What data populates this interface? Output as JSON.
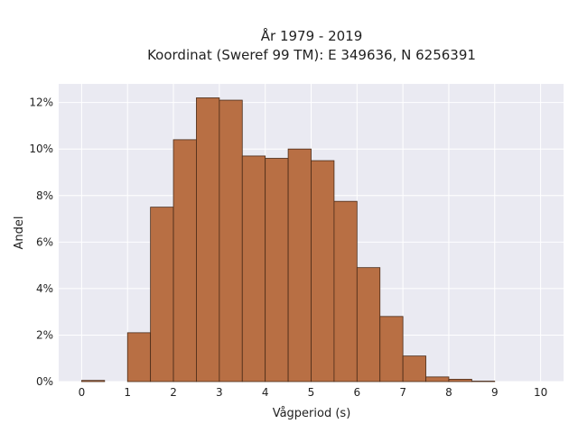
{
  "chart_data": {
    "type": "bar",
    "title": "År 1979 - 2019",
    "subtitle": "Koordinat (Sweref 99 TM): E 349636, N 6256391",
    "xlabel": "Vågperiod (s)",
    "ylabel": "Andel",
    "bin_width": 0.5,
    "bins_start": [
      0,
      0.5,
      1,
      1.5,
      2,
      2.5,
      3,
      3.5,
      4,
      4.5,
      5,
      5.5,
      6,
      6.5,
      7,
      7.5,
      8,
      8.5,
      9,
      9.5
    ],
    "values": [
      0.05,
      0,
      2.1,
      7.5,
      10.4,
      12.2,
      12.1,
      9.7,
      9.6,
      10.0,
      9.5,
      7.75,
      4.9,
      2.8,
      1.1,
      0.2,
      0.1,
      0.02,
      0,
      0
    ],
    "xlim": [
      -0.5,
      10.5
    ],
    "ylim": [
      0,
      12.8
    ],
    "xticks": [
      0,
      1,
      2,
      3,
      4,
      5,
      6,
      7,
      8,
      9,
      10
    ],
    "xtick_labels": [
      "0",
      "1",
      "2",
      "3",
      "4",
      "5",
      "6",
      "7",
      "8",
      "9",
      "10"
    ],
    "yticks": [
      0,
      2,
      4,
      6,
      8,
      10,
      12
    ],
    "ytick_labels": [
      "0%",
      "2%",
      "4%",
      "6%",
      "8%",
      "10%",
      "12%"
    ],
    "grid": true,
    "colors": {
      "bar_fill": "#b86f44",
      "bar_stroke": "#4a2b18",
      "plot_background": "#eaeaf2",
      "grid": "#ffffff"
    }
  }
}
